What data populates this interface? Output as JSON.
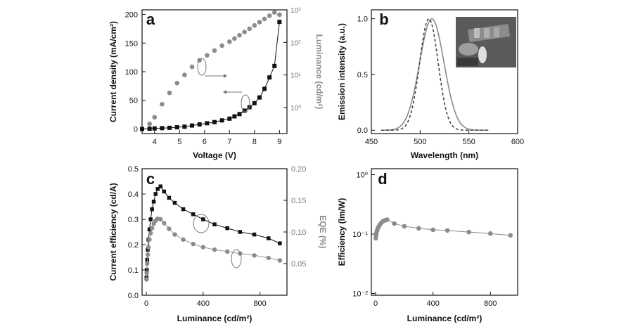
{
  "chart_data": [
    {
      "panel": "a",
      "type": "scatter",
      "title": "",
      "xlabel": "Voltage (V)",
      "ylabel": "Current density (mA/cm²)",
      "ylabel_right": "Luminance (cd/m²)",
      "xlim": [
        3.5,
        9.3
      ],
      "ylim": [
        -8,
        208
      ],
      "ylim_right_log10": [
        -0.8,
        3.0
      ],
      "xticks": [
        "4",
        "5",
        "6",
        "7",
        "8",
        "9"
      ],
      "yticks": [
        "0",
        "50",
        "100",
        "150",
        "200"
      ],
      "yticks_right": [
        "10⁰",
        "10¹",
        "10²",
        "10³"
      ],
      "series": [
        {
          "axis": "left",
          "marker": "square",
          "color": "#111111",
          "x": [
            3.5,
            3.8,
            4.0,
            4.3,
            4.6,
            4.9,
            5.2,
            5.5,
            5.8,
            6.1,
            6.4,
            6.7,
            7.0,
            7.2,
            7.4,
            7.6,
            7.8,
            8.0,
            8.2,
            8.4,
            8.6,
            8.8,
            9.0
          ],
          "y": [
            0,
            0.5,
            1,
            1.5,
            2,
            3,
            4,
            6,
            8,
            10,
            12,
            15,
            18,
            22,
            26,
            32,
            38,
            45,
            55,
            70,
            90,
            110,
            187
          ]
        },
        {
          "axis": "right",
          "log10": true,
          "marker": "circle",
          "color": "#8c8c8c",
          "x": [
            3.8,
            4.0,
            4.3,
            4.6,
            4.9,
            5.2,
            5.5,
            5.8,
            6.1,
            6.4,
            6.7,
            7.0,
            7.2,
            7.4,
            7.6,
            7.8,
            8.0,
            8.2,
            8.4,
            8.6,
            8.8,
            9.0
          ],
          "y": [
            -0.5,
            -0.3,
            0.1,
            0.45,
            0.75,
            1.0,
            1.25,
            1.45,
            1.6,
            1.75,
            1.9,
            2.02,
            2.12,
            2.22,
            2.32,
            2.42,
            2.52,
            2.62,
            2.72,
            2.82,
            2.92,
            2.85
          ]
        }
      ],
      "panel_label": "a"
    },
    {
      "panel": "b",
      "type": "line",
      "title": "",
      "xlabel": "Wavelength (nm)",
      "ylabel": "Emission intensity (a.u.)",
      "xlim": [
        450,
        600
      ],
      "ylim": [
        -0.03,
        1.08
      ],
      "xticks": [
        "450",
        "500",
        "550",
        "600"
      ],
      "yticks": [
        "0.0",
        "0.5",
        "1.0"
      ],
      "series": [
        {
          "style": "solid",
          "color": "#8a8a8a",
          "center": 512,
          "sigma": 12.5,
          "x_range": [
            460,
            570
          ],
          "peak": 1.0
        },
        {
          "style": "dashed",
          "color": "#444444",
          "center": 509,
          "sigma": 9.5,
          "x_range": [
            460,
            570
          ],
          "peak": 1.0
        }
      ],
      "inset": "device-photo",
      "panel_label": "b"
    },
    {
      "panel": "c",
      "type": "scatter",
      "title": "",
      "xlabel": "Luminance (cd/m²)",
      "ylabel": "Current efficiency (cd/A)",
      "ylabel_right": "EQE (%)",
      "xlim": [
        -30,
        990
      ],
      "ylim": [
        0,
        0.5
      ],
      "ylim_right": [
        0,
        0.2
      ],
      "xticks": [
        "0",
        "400",
        "800"
      ],
      "yticks": [
        "0.0",
        "0.1",
        "0.2",
        "0.3",
        "0.4",
        "0.5"
      ],
      "yticks_right": [
        "0.05",
        "0.10",
        "0.15",
        "0.20"
      ],
      "series": [
        {
          "axis": "left",
          "marker": "square",
          "color": "#111111",
          "x": [
            1,
            3,
            6,
            10,
            15,
            22,
            30,
            40,
            52,
            65,
            80,
            100,
            125,
            160,
            200,
            260,
            330,
            400,
            480,
            570,
            660,
            760,
            860,
            940
          ],
          "y": [
            0.07,
            0.1,
            0.14,
            0.18,
            0.22,
            0.26,
            0.3,
            0.34,
            0.37,
            0.4,
            0.42,
            0.43,
            0.41,
            0.385,
            0.365,
            0.34,
            0.32,
            0.3,
            0.28,
            0.265,
            0.25,
            0.24,
            0.225,
            0.205
          ]
        },
        {
          "axis": "right",
          "marker": "circle",
          "color": "#8c8c8c",
          "x": [
            1,
            3,
            6,
            10,
            15,
            22,
            30,
            40,
            52,
            65,
            80,
            100,
            125,
            160,
            200,
            260,
            330,
            400,
            480,
            570,
            660,
            760,
            860,
            940
          ],
          "y": [
            0.025,
            0.035,
            0.05,
            0.064,
            0.076,
            0.088,
            0.098,
            0.106,
            0.113,
            0.118,
            0.121,
            0.12,
            0.114,
            0.105,
            0.096,
            0.088,
            0.081,
            0.076,
            0.072,
            0.069,
            0.066,
            0.063,
            0.059,
            0.055
          ]
        }
      ],
      "panel_label": "c"
    },
    {
      "panel": "d",
      "type": "scatter",
      "title": "",
      "xlabel": "Luminance (cd/m²)",
      "ylabel": "Efficiency (lm/W)",
      "xlim": [
        -30,
        990
      ],
      "ylim_log10": [
        -2.03,
        0.1
      ],
      "yscale": "log",
      "xticks": [
        "0",
        "400",
        "800"
      ],
      "yticks": [
        "10⁻²",
        "10⁻¹",
        "10⁰"
      ],
      "series": [
        {
          "marker": "circle",
          "color": "#8c8c8c",
          "x": [
            1,
            3,
            6,
            10,
            15,
            22,
            30,
            40,
            52,
            65,
            80,
            130,
            200,
            300,
            400,
            500,
            650,
            800,
            940
          ],
          "y": [
            0.085,
            0.095,
            0.105,
            0.115,
            0.125,
            0.135,
            0.145,
            0.155,
            0.165,
            0.17,
            0.175,
            0.15,
            0.135,
            0.125,
            0.118,
            0.115,
            0.108,
            0.102,
            0.095
          ]
        }
      ],
      "panel_label": "d"
    }
  ]
}
